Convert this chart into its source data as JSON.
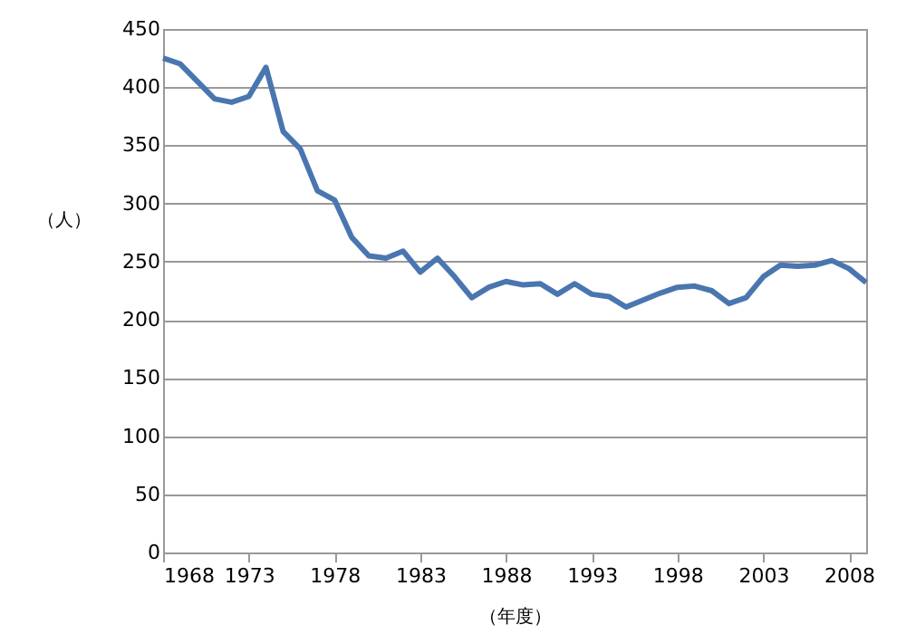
{
  "chart_data": {
    "type": "line",
    "xlabel": "（年度）",
    "ylabel": "（人）",
    "x": [
      1968,
      1969,
      1970,
      1971,
      1972,
      1973,
      1974,
      1975,
      1976,
      1977,
      1978,
      1979,
      1980,
      1981,
      1982,
      1983,
      1984,
      1985,
      1986,
      1987,
      1988,
      1989,
      1990,
      1991,
      1992,
      1993,
      1994,
      1995,
      1996,
      1997,
      1998,
      1999,
      2000,
      2001,
      2002,
      2003,
      2004,
      2005,
      2006,
      2007,
      2008,
      2009
    ],
    "series": [
      {
        "color": "#4a76b0",
        "values": [
          425,
          420,
          405,
          390,
          387,
          392,
          417,
          362,
          347,
          311,
          303,
          271,
          255,
          253,
          259,
          241,
          253,
          237,
          219,
          228,
          233,
          230,
          231,
          222,
          231,
          222,
          220,
          211,
          217,
          223,
          228,
          229,
          225,
          214,
          219,
          237,
          247,
          246,
          247,
          251,
          244,
          232
        ]
      }
    ],
    "xlim": [
      1968,
      2009
    ],
    "xticks": [
      1968,
      1973,
      1978,
      1983,
      1988,
      1993,
      1998,
      2003,
      2008
    ],
    "ylim": [
      0,
      450
    ],
    "yticks": [
      0,
      50,
      100,
      150,
      200,
      250,
      300,
      350,
      400,
      450
    ],
    "grid": "y",
    "marker": "none",
    "line_style": "solid"
  }
}
